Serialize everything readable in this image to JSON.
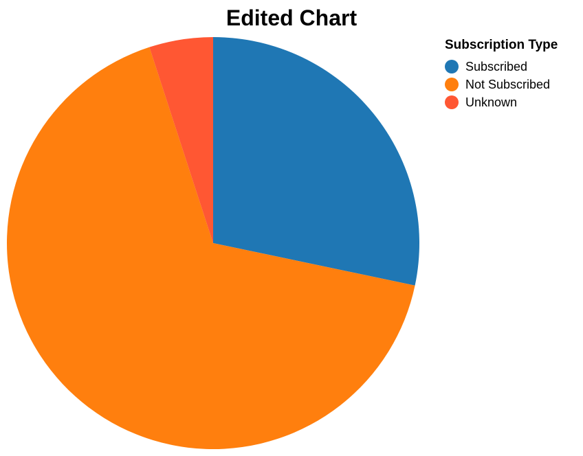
{
  "chart_data": {
    "type": "pie",
    "title": "Edited Chart",
    "legend": {
      "title": "Subscription Type",
      "placement": "top-right"
    },
    "categories": [
      "Subscribed",
      "Not Subscribed",
      "Unknown"
    ],
    "values": [
      28.3,
      66.7,
      5.0
    ],
    "colors": [
      "#1f77b4",
      "#ff7f0e",
      "#ff5733"
    ],
    "start_angle_deg": 0,
    "direction": "clockwise-from-top"
  }
}
